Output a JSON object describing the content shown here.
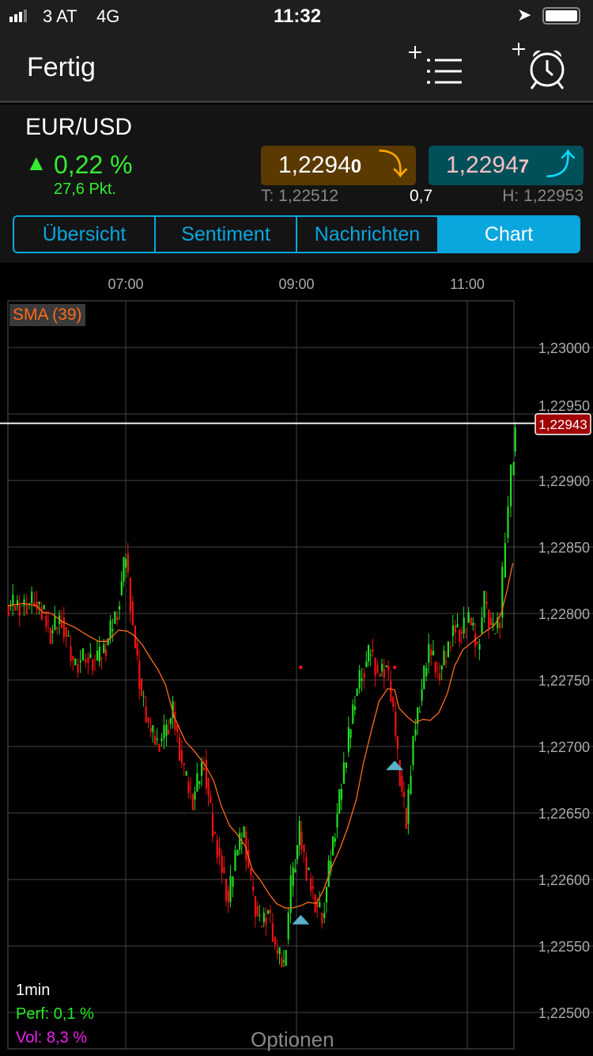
{
  "status_bar": {
    "carrier": "3 AT",
    "network": "4G",
    "time": "11:32"
  },
  "nav": {
    "done_label": "Fertig",
    "icons": [
      "add-watchlist-icon",
      "add-alarm-icon"
    ]
  },
  "instrument": {
    "symbol": "EUR/USD",
    "change_pct": "0,22 %",
    "change_pts": "27,6 Pkt.",
    "bid": {
      "main": "1,2294",
      "last": "0",
      "color": "#5a3a00",
      "arrow": "arrow-down-icon"
    },
    "ask": {
      "main": "1,2294",
      "last": "7",
      "color": "#00505a",
      "arrow": "arrow-up-icon"
    },
    "low": "T: 1,22512",
    "spread": "0,7",
    "high": "H: 1,22953"
  },
  "tabs": [
    {
      "label": "Übersicht"
    },
    {
      "label": "Sentiment"
    },
    {
      "label": "Nachrichten"
    },
    {
      "label": "Chart",
      "active": true
    }
  ],
  "chart_data": {
    "type": "candlestick",
    "indicator": "SMA (39)",
    "interval": "1min",
    "perf": "Perf: 0,1 %",
    "vol": "Vol: 8,3 %",
    "options_label": "Optionen",
    "current_price": "1,22943",
    "current_value": 1.22943,
    "x_ticks": [
      "07:00",
      "09:00",
      "11:00"
    ],
    "y_ticks": [
      "1,23000",
      "1,22950",
      "1,22900",
      "1,22850",
      "1,22800",
      "1,22750",
      "1,22700",
      "1,22650",
      "1,22600",
      "1,22550",
      "1,22500"
    ],
    "ylim": [
      1.225,
      1.23
    ],
    "colors": {
      "up": "#22dd22",
      "down": "#ee1111",
      "sma": "#ff6a1a",
      "marker": "#5ab0c8"
    },
    "markers": [
      {
        "t": "09:03",
        "price": 1.22571
      },
      {
        "t": "10:09",
        "price": 1.22687
      }
    ],
    "points": [
      [
        "05:37",
        1.22806
      ],
      [
        "05:48",
        1.22809
      ],
      [
        "05:57",
        1.22803
      ],
      [
        "06:02",
        1.22785
      ],
      [
        "06:08",
        1.22797
      ],
      [
        "06:16",
        1.22761
      ],
      [
        "06:24",
        1.22767
      ],
      [
        "06:33",
        1.22764
      ],
      [
        "06:41",
        1.22776
      ],
      [
        "06:47",
        1.22803
      ],
      [
        "06:55",
        1.22845
      ],
      [
        "07:01",
        1.22791
      ],
      [
        "07:06",
        1.22738
      ],
      [
        "07:12",
        1.22714
      ],
      [
        "07:17",
        1.22702
      ],
      [
        "07:23",
        1.22708
      ],
      [
        "07:28",
        1.22726
      ],
      [
        "07:34",
        1.22678
      ],
      [
        "07:42",
        1.2266
      ],
      [
        "07:48",
        1.2269
      ],
      [
        "07:56",
        1.22636
      ],
      [
        "08:02",
        1.22618
      ],
      [
        "08:07",
        1.22583
      ],
      [
        "08:13",
        1.22618
      ],
      [
        "08:18",
        1.22636
      ],
      [
        "08:24",
        1.22595
      ],
      [
        "08:29",
        1.22565
      ],
      [
        "08:35",
        1.22577
      ],
      [
        "08:41",
        1.22547
      ],
      [
        "08:46",
        1.22535
      ],
      [
        "08:52",
        1.22595
      ],
      [
        "08:57",
        1.22636
      ],
      [
        "09:03",
        1.22607
      ],
      [
        "09:08",
        1.22583
      ],
      [
        "09:14",
        1.22571
      ],
      [
        "09:19",
        1.22618
      ],
      [
        "09:25",
        1.2266
      ],
      [
        "09:31",
        1.22696
      ],
      [
        "09:36",
        1.22738
      ],
      [
        "09:42",
        1.22755
      ],
      [
        "09:47",
        1.22773
      ],
      [
        "09:53",
        1.22755
      ],
      [
        "09:58",
        1.22761
      ],
      [
        "10:04",
        1.22726
      ],
      [
        "10:09",
        1.2269
      ],
      [
        "10:12",
        1.22642
      ],
      [
        "10:18",
        1.22708
      ],
      [
        "10:23",
        1.22743
      ],
      [
        "10:29",
        1.22773
      ],
      [
        "10:34",
        1.22755
      ],
      [
        "10:40",
        1.22767
      ],
      [
        "10:46",
        1.22791
      ],
      [
        "10:51",
        1.22785
      ],
      [
        "10:57",
        1.22797
      ],
      [
        "11:02",
        1.22773
      ],
      [
        "11:08",
        1.22809
      ],
      [
        "11:13",
        1.22785
      ],
      [
        "11:19",
        1.22797
      ],
      [
        "11:24",
        1.22857
      ],
      [
        "11:28",
        1.22904
      ],
      [
        "11:32",
        1.2294
      ]
    ]
  }
}
